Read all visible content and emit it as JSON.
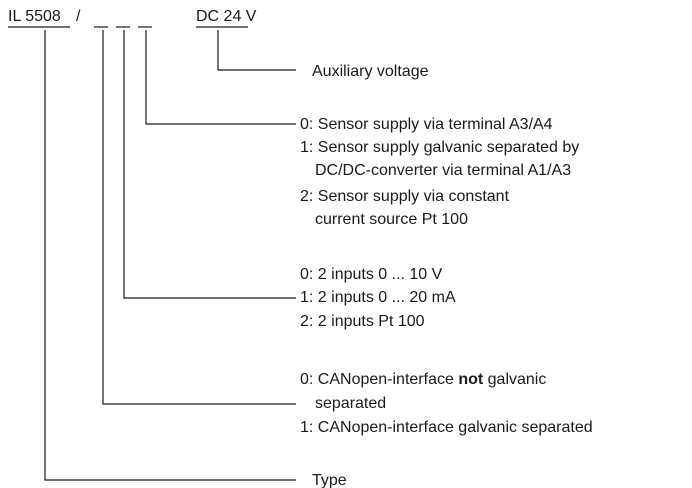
{
  "code": {
    "prefix": "IL 5508",
    "separator": "/",
    "suffix": "DC 24 V"
  },
  "fields": [
    {
      "label": "Auxiliary voltage"
    },
    {
      "options": [
        "0: Sensor supply via terminal A3/A4",
        "1: Sensor supply galvanic separated by",
        "DC/DC-converter via terminal A1/A3",
        "2: Sensor supply via constant",
        "current source Pt 100"
      ]
    },
    {
      "options": [
        "0: 2 inputs 0 ... 10 V",
        "1: 2 inputs 0 ... 20 mA",
        "2: 2 inputs Pt 100"
      ]
    },
    {
      "options": [
        {
          "before": "0: CANopen-interface",
          "bold": "not",
          "after": "galvanic"
        },
        "separated",
        "1: CANopen-interface galvanic separated"
      ]
    },
    {
      "label": "Type"
    }
  ]
}
